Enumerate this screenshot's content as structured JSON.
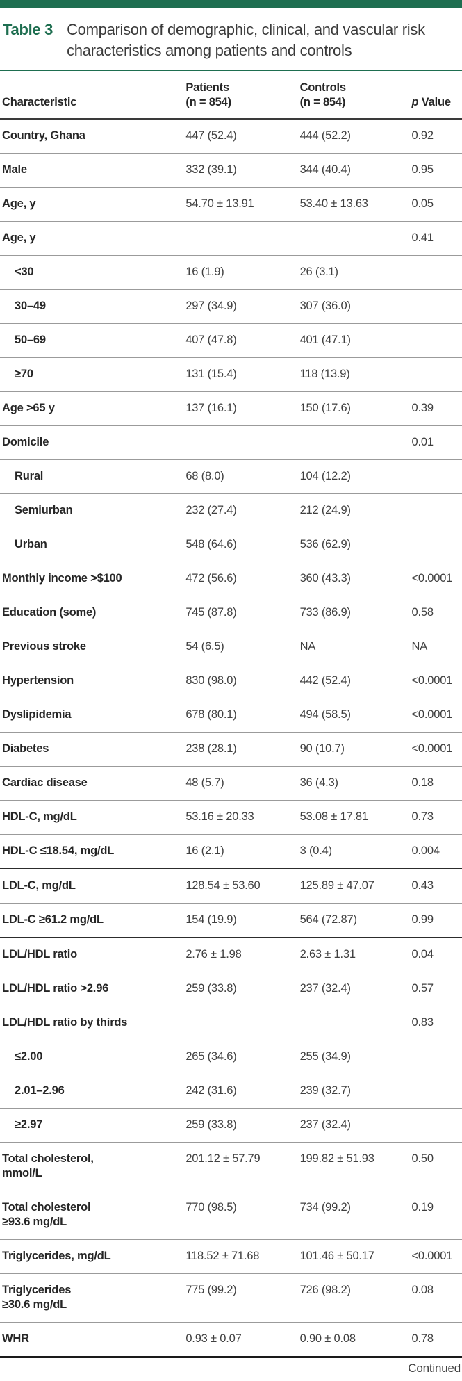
{
  "colors": {
    "green": "#1e6e50",
    "header_rule": "#3a3a3a",
    "row_rule": "#9b9b9b",
    "bottom_rule": "#1a1a1a",
    "label_text": "#262626",
    "value_text": "#3f3f3f"
  },
  "table": {
    "label": "Table 3",
    "title": "Comparison of demographic, clinical, and vascular risk characteristics among patients and controls",
    "columns": {
      "characteristic": "Characteristic",
      "patients": "Patients\n(n = 854)",
      "controls": "Controls\n(n = 854)",
      "p_italic": "p",
      "p_rest": " Value"
    },
    "rows": [
      {
        "label": "Country, Ghana",
        "patients": "447 (52.4)",
        "controls": "444 (52.2)",
        "p": "0.92"
      },
      {
        "label": "Male",
        "patients": "332 (39.1)",
        "controls": "344 (40.4)",
        "p": "0.95"
      },
      {
        "label": "Age, y",
        "patients": "54.70 ± 13.91",
        "controls": "53.40 ± 13.63",
        "p": "0.05"
      },
      {
        "label": "Age, y",
        "patients": "",
        "controls": "",
        "p": "0.41"
      },
      {
        "label": "<30",
        "indent": true,
        "patients": "16 (1.9)",
        "controls": "26 (3.1)",
        "p": ""
      },
      {
        "label": "30–49",
        "indent": true,
        "patients": "297 (34.9)",
        "controls": "307 (36.0)",
        "p": ""
      },
      {
        "label": "50–69",
        "indent": true,
        "patients": "407 (47.8)",
        "controls": "401 (47.1)",
        "p": ""
      },
      {
        "label": "≥70",
        "indent": true,
        "patients": "131 (15.4)",
        "controls": "118 (13.9)",
        "p": ""
      },
      {
        "label": "Age >65 y",
        "patients": "137 (16.1)",
        "controls": "150 (17.6)",
        "p": "0.39"
      },
      {
        "label": "Domicile",
        "patients": "",
        "controls": "",
        "p": "0.01"
      },
      {
        "label": "Rural",
        "indent": true,
        "patients": "68 (8.0)",
        "controls": "104 (12.2)",
        "p": ""
      },
      {
        "label": "Semiurban",
        "indent": true,
        "patients": "232 (27.4)",
        "controls": "212 (24.9)",
        "p": ""
      },
      {
        "label": "Urban",
        "indent": true,
        "patients": "548 (64.6)",
        "controls": "536 (62.9)",
        "p": ""
      },
      {
        "label": "Monthly income >$100",
        "patients": "472 (56.6)",
        "controls": "360 (43.3)",
        "p": "<0.0001"
      },
      {
        "label": "Education (some)",
        "patients": "745 (87.8)",
        "controls": "733 (86.9)",
        "p": "0.58"
      },
      {
        "label": "Previous stroke",
        "patients": "54 (6.5)",
        "controls": "NA",
        "p": "NA"
      },
      {
        "label": "Hypertension",
        "patients": "830 (98.0)",
        "controls": "442 (52.4)",
        "p": "<0.0001"
      },
      {
        "label": "Dyslipidemia",
        "patients": "678 (80.1)",
        "controls": "494 (58.5)",
        "p": "<0.0001"
      },
      {
        "label": "Diabetes",
        "patients": "238 (28.1)",
        "controls": "90 (10.7)",
        "p": "<0.0001"
      },
      {
        "label": "Cardiac disease",
        "patients": "48 (5.7)",
        "controls": "36 (4.3)",
        "p": "0.18"
      },
      {
        "label": "HDL-C, mg/dL",
        "patients": "53.16 ± 20.33",
        "controls": "53.08 ± 17.81",
        "p": "0.73"
      },
      {
        "label": "HDL-C ≤18.54, mg/dL",
        "patients": "16 (2.1)",
        "controls": "3 (0.4)",
        "p": "0.004"
      },
      {
        "label": "LDL-C, mg/dL",
        "strong_top": true,
        "patients": "128.54 ± 53.60",
        "controls": "125.89 ± 47.07",
        "p": "0.43"
      },
      {
        "label": "LDL-C ≥61.2 mg/dL",
        "patients": "154 (19.9)",
        "controls": "564 (72.87)",
        "p": "0.99"
      },
      {
        "label": "LDL/HDL ratio",
        "strong_top": true,
        "patients": "2.76 ± 1.98",
        "controls": "2.63 ± 1.31",
        "p": "0.04"
      },
      {
        "label": "LDL/HDL ratio >2.96",
        "patients": "259 (33.8)",
        "controls": "237 (32.4)",
        "p": "0.57"
      },
      {
        "label": "LDL/HDL ratio by thirds",
        "patients": "",
        "controls": "",
        "p": "0.83"
      },
      {
        "label": "≤2.00",
        "indent": true,
        "patients": "265 (34.6)",
        "controls": "255 (34.9)",
        "p": ""
      },
      {
        "label": "2.01–2.96",
        "indent": true,
        "patients": "242 (31.6)",
        "controls": "239 (32.7)",
        "p": ""
      },
      {
        "label": "≥2.97",
        "indent": true,
        "patients": "259 (33.8)",
        "controls": "237 (32.4)",
        "p": ""
      },
      {
        "label": "Total cholesterol,\nmmol/L",
        "patients": "201.12 ± 57.79",
        "controls": "199.82 ± 51.93",
        "p": "0.50"
      },
      {
        "label": "Total cholesterol\n≥93.6 mg/dL",
        "patients": "770 (98.5)",
        "controls": "734 (99.2)",
        "p": "0.19"
      },
      {
        "label": "Triglycerides, mg/dL",
        "patients": "118.52 ± 71.68",
        "controls": "101.46 ± 50.17",
        "p": "<0.0001"
      },
      {
        "label": "Triglycerides\n≥30.6 mg/dL",
        "patients": "775 (99.2)",
        "controls": "726 (98.2)",
        "p": "0.08"
      },
      {
        "label": "WHR",
        "patients": "0.93 ± 0.07",
        "controls": "0.90 ± 0.08",
        "p": "0.78"
      }
    ],
    "continued": "Continued"
  }
}
